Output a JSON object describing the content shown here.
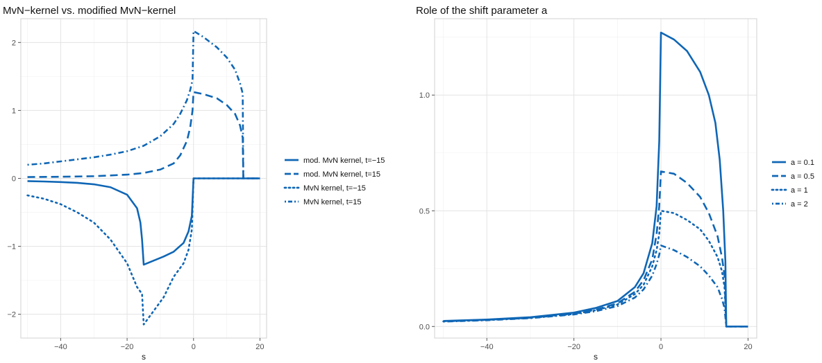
{
  "charts": [
    {
      "type": "line",
      "title": "MvN−kernel vs. modified MvN−kernel",
      "xlabel": "s",
      "ylabel": "",
      "xlim": [
        -52,
        22
      ],
      "ylim": [
        -2.35,
        2.35
      ],
      "xticks": [
        -40,
        -20,
        0,
        20
      ],
      "yticks": [
        -2,
        -1,
        0,
        1,
        2
      ],
      "grid": true,
      "legend_position": "right",
      "color": "#0f66b5",
      "series": [
        {
          "name": "mod. MvN kernel, t=−15",
          "dash": "solid",
          "points": [
            [
              -50,
              -0.04
            ],
            [
              -45,
              -0.046
            ],
            [
              -40,
              -0.054
            ],
            [
              -35,
              -0.066
            ],
            [
              -30,
              -0.087
            ],
            [
              -25,
              -0.13
            ],
            [
              -20,
              -0.24
            ],
            [
              -17,
              -0.44
            ],
            [
              -16,
              -0.65
            ],
            [
              -15.5,
              -0.9
            ],
            [
              -15,
              -1.27
            ],
            [
              -12,
              -1.21
            ],
            [
              -9,
              -1.15
            ],
            [
              -6,
              -1.08
            ],
            [
              -3,
              -0.95
            ],
            [
              -1.5,
              -0.78
            ],
            [
              -0.5,
              -0.55
            ],
            [
              0,
              0
            ],
            [
              5,
              0
            ],
            [
              10,
              0
            ],
            [
              15,
              0
            ],
            [
              20,
              0
            ]
          ]
        },
        {
          "name": "mod. MvN kernel, t=15",
          "dash": "longdash",
          "points": [
            [
              -50,
              0.02
            ],
            [
              -40,
              0.024
            ],
            [
              -30,
              0.032
            ],
            [
              -20,
              0.055
            ],
            [
              -15,
              0.08
            ],
            [
              -10,
              0.13
            ],
            [
              -6,
              0.22
            ],
            [
              -4,
              0.34
            ],
            [
              -2,
              0.55
            ],
            [
              -1,
              0.75
            ],
            [
              -0.3,
              1.0
            ],
            [
              0,
              1.27
            ],
            [
              3,
              1.24
            ],
            [
              7,
              1.18
            ],
            [
              10,
              1.08
            ],
            [
              12.5,
              0.95
            ],
            [
              14,
              0.78
            ],
            [
              14.8,
              0.6
            ],
            [
              15,
              0.0
            ],
            [
              20,
              0.0
            ]
          ]
        },
        {
          "name": "MvN kernel, t=−15",
          "dash": "dotted",
          "points": [
            [
              -50,
              -0.25
            ],
            [
              -45,
              -0.3
            ],
            [
              -40,
              -0.38
            ],
            [
              -35,
              -0.5
            ],
            [
              -30,
              -0.65
            ],
            [
              -25,
              -0.9
            ],
            [
              -20,
              -1.25
            ],
            [
              -17,
              -1.6
            ],
            [
              -15.5,
              -1.7
            ],
            [
              -15,
              -2.15
            ],
            [
              -12,
              -1.95
            ],
            [
              -9,
              -1.75
            ],
            [
              -6,
              -1.45
            ],
            [
              -3,
              -1.25
            ],
            [
              -1.5,
              -1.05
            ],
            [
              -0.5,
              -0.75
            ],
            [
              0,
              0
            ],
            [
              5,
              0
            ],
            [
              10,
              0
            ],
            [
              15,
              0
            ],
            [
              20,
              0
            ]
          ]
        },
        {
          "name": "MvN kernel, t=15",
          "dash": "dotdash",
          "points": [
            [
              -50,
              0.2
            ],
            [
              -45,
              0.22
            ],
            [
              -40,
              0.25
            ],
            [
              -35,
              0.28
            ],
            [
              -30,
              0.31
            ],
            [
              -25,
              0.35
            ],
            [
              -20,
              0.4
            ],
            [
              -15,
              0.48
            ],
            [
              -10,
              0.62
            ],
            [
              -6,
              0.8
            ],
            [
              -4,
              0.95
            ],
            [
              -2,
              1.15
            ],
            [
              -1,
              1.3
            ],
            [
              -0.3,
              1.45
            ],
            [
              0,
              2.17
            ],
            [
              3,
              2.08
            ],
            [
              7,
              1.93
            ],
            [
              10,
              1.78
            ],
            [
              12.5,
              1.6
            ],
            [
              14,
              1.4
            ],
            [
              14.8,
              1.25
            ],
            [
              15,
              0.0
            ],
            [
              20,
              0.0
            ]
          ]
        }
      ]
    },
    {
      "type": "line",
      "title": "Role of the shift parameter a",
      "xlabel": "s",
      "ylabel": "",
      "xlim": [
        -52,
        22
      ],
      "ylim": [
        -0.05,
        1.33
      ],
      "xticks": [
        -40,
        -20,
        0,
        20
      ],
      "yticks": [
        0.0,
        0.5,
        1.0
      ],
      "ytick_labels": [
        "0.0",
        "0.5",
        "1.0"
      ],
      "grid": true,
      "legend_position": "right",
      "color": "#0f66b5",
      "series": [
        {
          "name": "a = 0.1",
          "dash": "solid",
          "points": [
            [
              -50,
              0.024
            ],
            [
              -40,
              0.03
            ],
            [
              -30,
              0.04
            ],
            [
              -20,
              0.06
            ],
            [
              -15,
              0.08
            ],
            [
              -10,
              0.11
            ],
            [
              -6,
              0.17
            ],
            [
              -4,
              0.23
            ],
            [
              -2,
              0.36
            ],
            [
              -1,
              0.52
            ],
            [
              -0.4,
              0.8
            ],
            [
              0,
              1.27
            ],
            [
              3,
              1.24
            ],
            [
              6,
              1.19
            ],
            [
              9,
              1.1
            ],
            [
              11,
              1.0
            ],
            [
              12.5,
              0.88
            ],
            [
              13.5,
              0.72
            ],
            [
              14.3,
              0.5
            ],
            [
              14.8,
              0.28
            ],
            [
              15,
              0.0
            ],
            [
              20,
              0.0
            ]
          ]
        },
        {
          "name": "a = 0.5",
          "dash": "longdash",
          "points": [
            [
              -50,
              0.023
            ],
            [
              -40,
              0.029
            ],
            [
              -30,
              0.038
            ],
            [
              -20,
              0.056
            ],
            [
              -15,
              0.072
            ],
            [
              -10,
              0.1
            ],
            [
              -6,
              0.15
            ],
            [
              -4,
              0.2
            ],
            [
              -2,
              0.29
            ],
            [
              -1,
              0.4
            ],
            [
              -0.4,
              0.52
            ],
            [
              0,
              0.67
            ],
            [
              3,
              0.66
            ],
            [
              6,
              0.62
            ],
            [
              9,
              0.56
            ],
            [
              11,
              0.49
            ],
            [
              13,
              0.39
            ],
            [
              14,
              0.3
            ],
            [
              14.6,
              0.22
            ],
            [
              15,
              0.0
            ],
            [
              20,
              0.0
            ]
          ]
        },
        {
          "name": "a = 1",
          "dash": "dotted",
          "points": [
            [
              -50,
              0.022
            ],
            [
              -40,
              0.028
            ],
            [
              -30,
              0.037
            ],
            [
              -20,
              0.054
            ],
            [
              -15,
              0.07
            ],
            [
              -10,
              0.095
            ],
            [
              -6,
              0.14
            ],
            [
              -4,
              0.18
            ],
            [
              -2,
              0.26
            ],
            [
              -1,
              0.33
            ],
            [
              -0.4,
              0.4
            ],
            [
              0,
              0.5
            ],
            [
              3,
              0.49
            ],
            [
              6,
              0.46
            ],
            [
              9,
              0.42
            ],
            [
              11,
              0.37
            ],
            [
              13,
              0.3
            ],
            [
              14,
              0.24
            ],
            [
              14.6,
              0.17
            ],
            [
              15,
              0.0
            ],
            [
              20,
              0.0
            ]
          ]
        },
        {
          "name": "a = 2",
          "dash": "dotdash",
          "points": [
            [
              -50,
              0.021
            ],
            [
              -40,
              0.027
            ],
            [
              -30,
              0.036
            ],
            [
              -20,
              0.052
            ],
            [
              -15,
              0.066
            ],
            [
              -10,
              0.088
            ],
            [
              -6,
              0.125
            ],
            [
              -4,
              0.16
            ],
            [
              -2,
              0.22
            ],
            [
              -1,
              0.27
            ],
            [
              -0.4,
              0.31
            ],
            [
              0,
              0.35
            ],
            [
              3,
              0.33
            ],
            [
              6,
              0.3
            ],
            [
              9,
              0.26
            ],
            [
              11,
              0.22
            ],
            [
              13,
              0.17
            ],
            [
              14,
              0.12
            ],
            [
              14.6,
              0.08
            ],
            [
              15,
              0.0
            ],
            [
              20,
              0.0
            ]
          ]
        }
      ]
    }
  ]
}
